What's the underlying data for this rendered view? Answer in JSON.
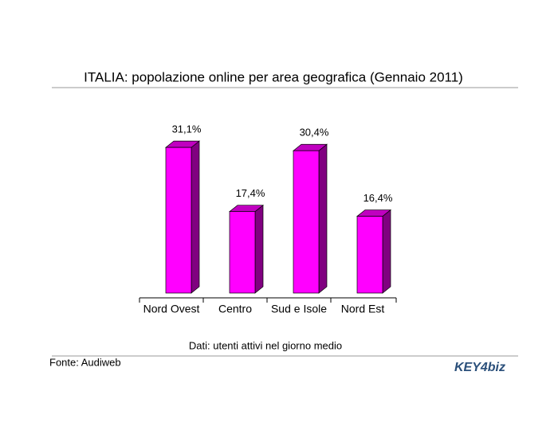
{
  "chart_data": {
    "type": "bar3d",
    "title": "ITALIA: popolazione online per area geografica (Gennaio 2011)",
    "categories": [
      "Nord Ovest",
      "Centro",
      "Sud e Isole",
      "Nord Est"
    ],
    "values": [
      31.1,
      17.4,
      30.4,
      16.4
    ],
    "value_labels": [
      "31,1%",
      "17,4%",
      "30,4%",
      "16,4%"
    ],
    "color": "#ff00ff",
    "note": "Dati: utenti attivi nel giorno medio",
    "source": "Fonte: Audiweb",
    "logo": "KEY4biz"
  }
}
